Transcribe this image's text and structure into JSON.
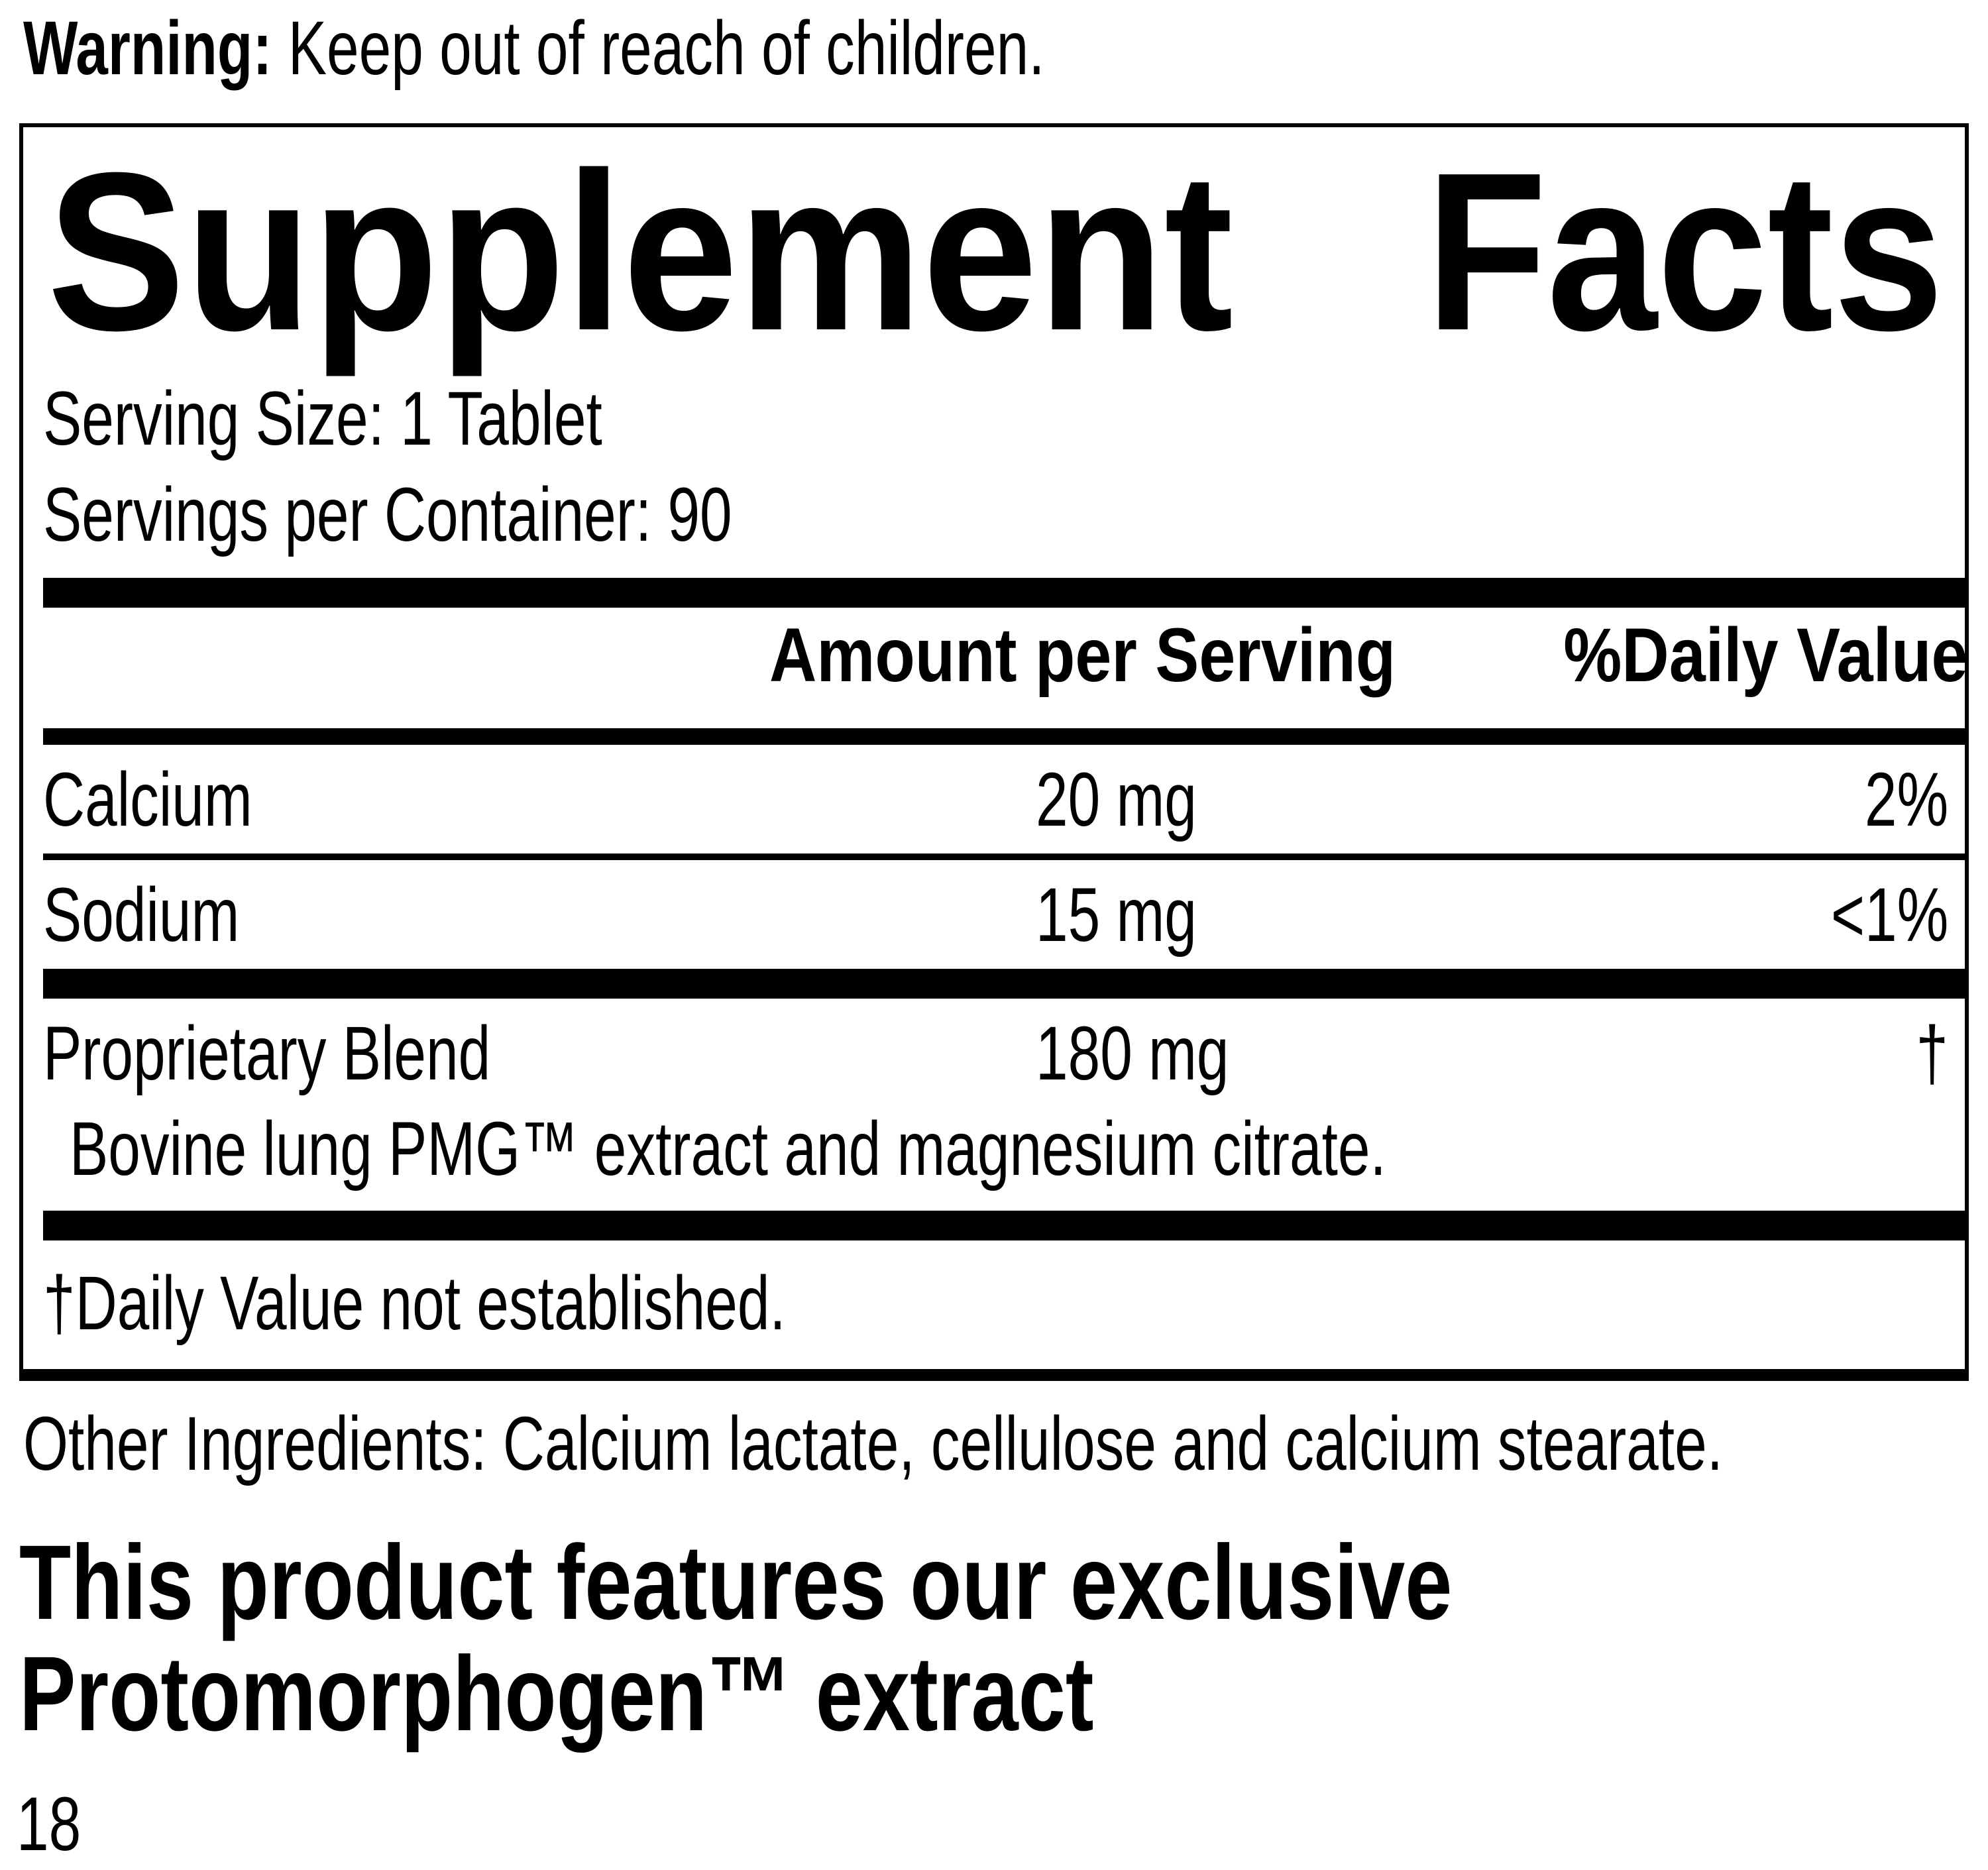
{
  "warning": {
    "label": "Warning:",
    "text": "Keep out of reach of children."
  },
  "panel": {
    "title": {
      "word1": "Supplement",
      "word2": "Facts"
    },
    "serving_size": "Serving Size: 1 Tablet",
    "servings_per_container": "Servings per Container: 90",
    "columns": {
      "amount": "Amount per Serving",
      "daily_value": "%Daily Value"
    },
    "rows": [
      {
        "name": "Calcium",
        "amount": "20 mg",
        "dv": "2%"
      },
      {
        "name": "Sodium",
        "amount": "15 mg",
        "dv": "<1%"
      },
      {
        "name": "Proprietary Blend",
        "amount": "180 mg",
        "dv": "†",
        "description": "Bovine lung PMG™ extract and magnesium citrate."
      }
    ],
    "footnote": "†Daily Value not established."
  },
  "other_ingredients": "Other Ingredients: Calcium lactate, cellulose and calcium stearate.",
  "feature_text": {
    "line1": "This product features our exclusive",
    "line2": "Protomorphogen™ extract"
  },
  "page_number": "18",
  "colors": {
    "ink": "#000000",
    "background": "#ffffff"
  }
}
